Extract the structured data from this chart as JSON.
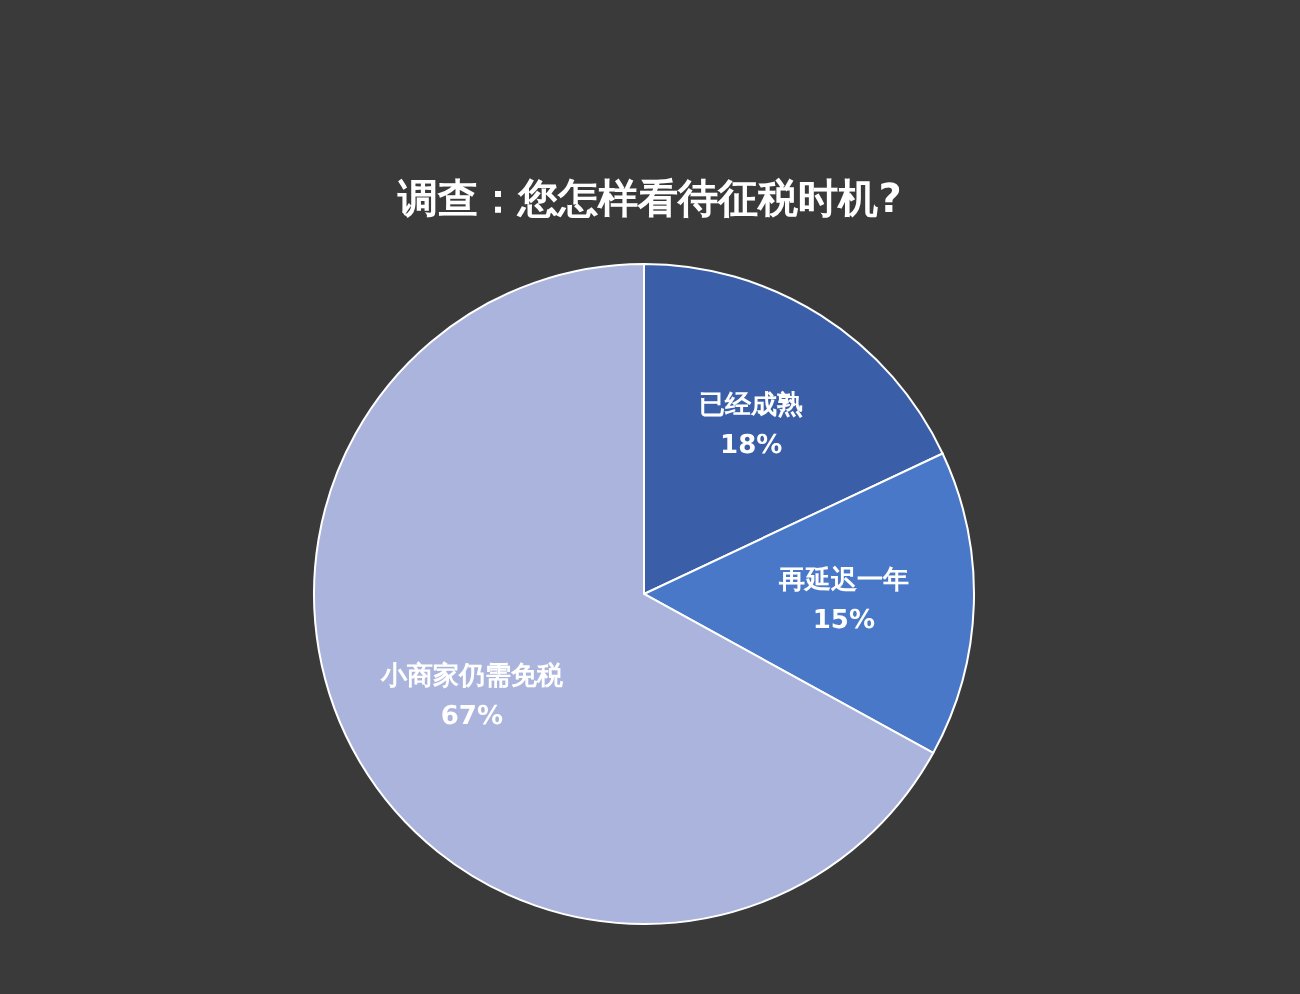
{
  "chart_data": {
    "type": "pie",
    "title": "调查：您怎样看待征税时机?",
    "categories": [
      "已经成熟",
      "再延迟一年",
      "小商家仍需免税"
    ],
    "values": [
      18,
      15,
      67
    ],
    "colors": [
      "#3a5ea8",
      "#4a78c9",
      "#aab4dc"
    ],
    "value_labels": [
      "18%",
      "15%",
      "67%"
    ],
    "legend": false
  }
}
